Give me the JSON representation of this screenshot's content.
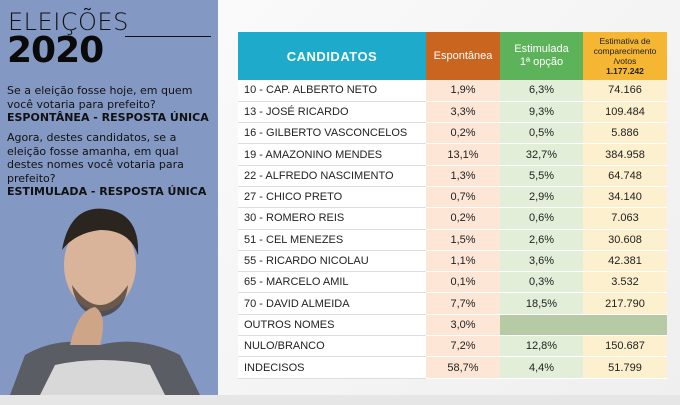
{
  "left": {
    "title_line1": "ELEIÇÕES",
    "title_line2": "2020",
    "q1": "Se a eleição fosse hoje, em quem você votaria para prefeito?",
    "q1_type": "ESPONTÂNEA - RESPOSTA ÚNICA",
    "q2": "Agora, destes candidatos, se a eleição fosse amanha, em qual destes nomes você votaria para prefeito?",
    "q2_type": "ESTIMULADA - RESPOSTA ÚNICA"
  },
  "table": {
    "headers": {
      "candidatos": "CANDIDATOS",
      "espontanea": "Espontânea",
      "estimulada_1": "Estimulada",
      "estimulada_2": "1ª opção",
      "estimativa_1": "Estimativa de",
      "estimativa_2": "comparecimento",
      "estimativa_3": "/votos",
      "estimativa_total": "1.177.242"
    },
    "rows": [
      {
        "name": "10 - CAP. ALBERTO NETO",
        "esp": "1,9%",
        "est": "6,3%",
        "votos": "74.166"
      },
      {
        "name": "13 - JOSÉ RICARDO",
        "esp": "3,3%",
        "est": "9,3%",
        "votos": "109.484"
      },
      {
        "name": "16 - GILBERTO VASCONCELOS",
        "esp": "0,2%",
        "est": "0,5%",
        "votos": "5.886"
      },
      {
        "name": "19 - AMAZONINO MENDES",
        "esp": "13,1%",
        "est": "32,7%",
        "votos": "384.958"
      },
      {
        "name": "22 - ALFREDO NASCIMENTO",
        "esp": "1,3%",
        "est": "5,5%",
        "votos": "64.748"
      },
      {
        "name": "27 - CHICO PRETO",
        "esp": "0,7%",
        "est": "2,9%",
        "votos": "34.140"
      },
      {
        "name": "30 - ROMERO REIS",
        "esp": "0,2%",
        "est": "0,6%",
        "votos": "7.063"
      },
      {
        "name": "51 - CEL MENEZES",
        "esp": "1,5%",
        "est": "2,6%",
        "votos": "30.608"
      },
      {
        "name": "55 - RICARDO NICOLAU",
        "esp": "1,1%",
        "est": "3,6%",
        "votos": "42.381"
      },
      {
        "name": "65 - MARCELO AMIL",
        "esp": "0,1%",
        "est": "0,3%",
        "votos": "3.532"
      },
      {
        "name": "70 - DAVID ALMEIDA",
        "esp": "7,7%",
        "est": "18,5%",
        "votos": "217.790"
      },
      {
        "name": "OUTROS NOMES",
        "esp": "3,0%",
        "est": null,
        "votos": null
      },
      {
        "name": "NULO/BRANCO",
        "esp": "7,2%",
        "est": "12,8%",
        "votos": "150.687"
      },
      {
        "name": "INDECISOS",
        "esp": "58,7%",
        "est": "4,4%",
        "votos": "51.799"
      }
    ]
  },
  "colors": {
    "candidatos": "#1eaacb",
    "espontanea": "#c9651f",
    "estimulada": "#5db35a",
    "estimativa": "#f5b633",
    "panel": "#8498c4"
  }
}
